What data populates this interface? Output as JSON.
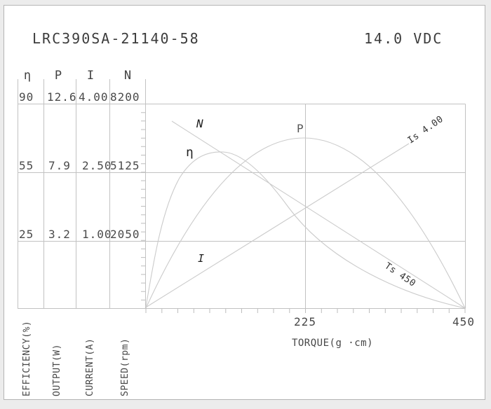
{
  "header": {
    "model_number": "LRC390SA-21140-58",
    "voltage": "14.0 VDC"
  },
  "table": {
    "columns": [
      {
        "symbol": "η",
        "axis_title": "EFFICIENCY(%)",
        "values": [
          "90",
          "55",
          "25"
        ]
      },
      {
        "symbol": "P",
        "axis_title": "OUTPUT(W)",
        "values": [
          "12.6",
          "7.9",
          "3.2"
        ]
      },
      {
        "symbol": "I",
        "axis_title": "CURRENT(A)",
        "values": [
          "4.00",
          "2.50",
          "1.00"
        ]
      },
      {
        "symbol": "N",
        "axis_title": "SPEED(rpm)",
        "values": [
          "8200",
          "5125",
          "2050"
        ]
      }
    ]
  },
  "plot": {
    "x_axis_title": "TORQUE(g ·cm)",
    "x_tick_labels": [
      "225",
      "450"
    ],
    "curve_labels": {
      "speed": "N",
      "efficiency": "η",
      "power": "P",
      "current": "I"
    },
    "annotations": {
      "stall_current": "Is 4.00",
      "stall_torque": "Ts 450"
    }
  },
  "chart_data": {
    "type": "line",
    "title": "LRC390SA-21140-58",
    "subtitle": "14.0 VDC",
    "xlabel": "TORQUE(g ·cm)",
    "xlim": [
      0,
      450
    ],
    "xticks": [
      225,
      450
    ],
    "grid": "horizontal gridlines at table rows + vertical at 225",
    "legend_position": "inline curve labels",
    "y_axes": [
      {
        "symbol": "η",
        "label": "EFFICIENCY(%)",
        "gridline_values": [
          90,
          55,
          25
        ],
        "min": 0
      },
      {
        "symbol": "P",
        "label": "OUTPUT(W)",
        "gridline_values": [
          12.6,
          7.9,
          3.2
        ],
        "min": 0
      },
      {
        "symbol": "I",
        "label": "CURRENT(A)",
        "gridline_values": [
          4.0,
          2.5,
          1.0
        ],
        "min": 0
      },
      {
        "symbol": "N",
        "label": "SPEED(rpm)",
        "gridline_values": [
          8200,
          5125,
          2050
        ],
        "min": 0
      }
    ],
    "series": [
      {
        "name": "N",
        "unit": "rpm",
        "shape": "linear",
        "points": [
          [
            0,
            8200
          ],
          [
            450,
            0
          ]
        ]
      },
      {
        "name": "I",
        "unit": "A",
        "shape": "linear",
        "points": [
          [
            0,
            0.05
          ],
          [
            450,
            4.0
          ]
        ]
      },
      {
        "name": "P",
        "unit": "W",
        "shape": "parabola",
        "points": [
          [
            0,
            0
          ],
          [
            225,
            10.3
          ],
          [
            450,
            0
          ]
        ]
      },
      {
        "name": "η",
        "unit": "%",
        "shape": "peaked curve",
        "points": [
          [
            0,
            0
          ],
          [
            110,
            65
          ],
          [
            450,
            0
          ]
        ]
      }
    ],
    "annotations": [
      {
        "text": "Is 4.00",
        "meaning": "stall current 4.00 A",
        "on_series": "I"
      },
      {
        "text": "Ts 450",
        "meaning": "stall torque 450 g·cm",
        "on_series": "N"
      }
    ]
  }
}
